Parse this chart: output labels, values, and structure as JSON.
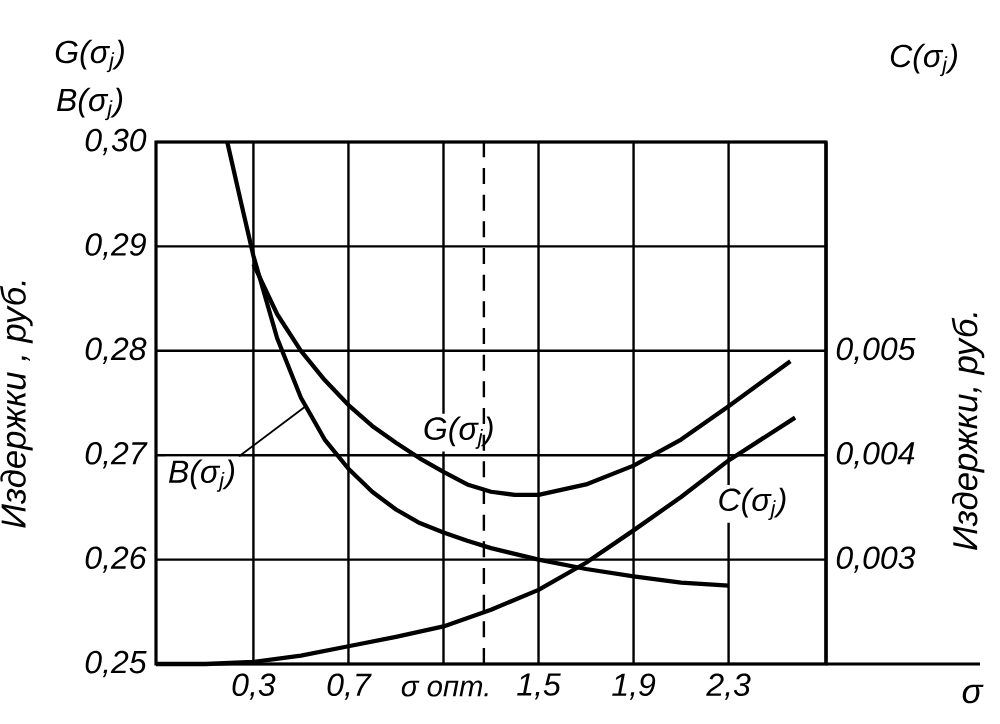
{
  "chart_data": {
    "type": "line",
    "ylabel": "Издержки , руб.",
    "y2label": "Издержки, руб.",
    "xlabel": "σ",
    "annotations": [
      "G(σ$_{j}$)",
      "B(σ$_{j}$)",
      "C(σ$_{j}$)"
    ],
    "series": [
      {
        "name": "G(σ$_{j}$)",
        "color": "#000000",
        "x": [
          0.3,
          0.4,
          0.5,
          0.6,
          0.7,
          0.8,
          0.9,
          1.0,
          1.1,
          1.2,
          1.3,
          1.4,
          1.5,
          1.7,
          1.9,
          2.1,
          2.3,
          2.56
        ],
        "values": [
          0.2883,
          0.2835,
          0.28,
          0.2772,
          0.2748,
          0.2728,
          0.2712,
          0.2697,
          0.2684,
          0.2672,
          0.2665,
          0.2662,
          0.2662,
          0.2672,
          0.269,
          0.2715,
          0.2747,
          0.279
        ]
      },
      {
        "name": "B(σ$_{j}$)",
        "color": "#000000",
        "x": [
          0.19,
          0.25,
          0.3,
          0.4,
          0.5,
          0.6,
          0.7,
          0.8,
          0.9,
          1.0,
          1.1,
          1.2,
          1.3,
          1.5,
          1.7,
          1.9,
          2.1,
          2.3
        ],
        "values": [
          0.3,
          0.294,
          0.2891,
          0.2812,
          0.2755,
          0.2715,
          0.2687,
          0.2665,
          0.2648,
          0.2635,
          0.2626,
          0.2618,
          0.2611,
          0.26,
          0.2591,
          0.2584,
          0.2578,
          0.2575
        ]
      },
      {
        "name": "C(σ$_{j}$)",
        "color": "#000000",
        "axis": "y2",
        "x": [
          -0.11,
          0.1,
          0.3,
          0.5,
          0.7,
          0.9,
          1.1,
          1.3,
          1.5,
          1.7,
          1.9,
          2.1,
          2.3,
          2.58
        ],
        "values": [
          0.002,
          0.002,
          0.00202,
          0.00208,
          0.00217,
          0.00226,
          0.00236,
          0.00252,
          0.00271,
          0.00297,
          0.00328,
          0.0036,
          0.00395,
          0.00436
        ]
      }
    ],
    "xlim": [
      -0.11,
      2.71
    ],
    "xticks": [
      {
        "value": 0.3,
        "label": "0,3"
      },
      {
        "value": 0.7,
        "label": "0,7"
      },
      {
        "value": 1.1,
        "label": null
      },
      {
        "value": 1.5,
        "label": "1,5"
      },
      {
        "value": 1.9,
        "label": "1,9"
      },
      {
        "value": 2.3,
        "label": "2,3"
      }
    ],
    "ylim": [
      0.25,
      0.3
    ],
    "yticks": [
      {
        "value": 0.25,
        "label": "0,25"
      },
      {
        "value": 0.26,
        "label": "0,26"
      },
      {
        "value": 0.27,
        "label": "0,27"
      },
      {
        "value": 0.28,
        "label": "0,28"
      },
      {
        "value": 0.29,
        "label": "0,29"
      },
      {
        "value": 0.3,
        "label": "0,30"
      }
    ],
    "y2lim": [
      0.002,
      0.007
    ],
    "y2ticks": [
      {
        "value": 0.003,
        "label": "0,003"
      },
      {
        "value": 0.004,
        "label": "0,004"
      },
      {
        "value": 0.005,
        "label": "0,005"
      }
    ],
    "ref_lines": [
      {
        "axis": "x",
        "value": 1.27,
        "label": "σ опт.",
        "line_style": "dashed",
        "color": "#000000"
      }
    ],
    "grid": true,
    "legend": false,
    "marker": "none",
    "line_style": "solid"
  }
}
